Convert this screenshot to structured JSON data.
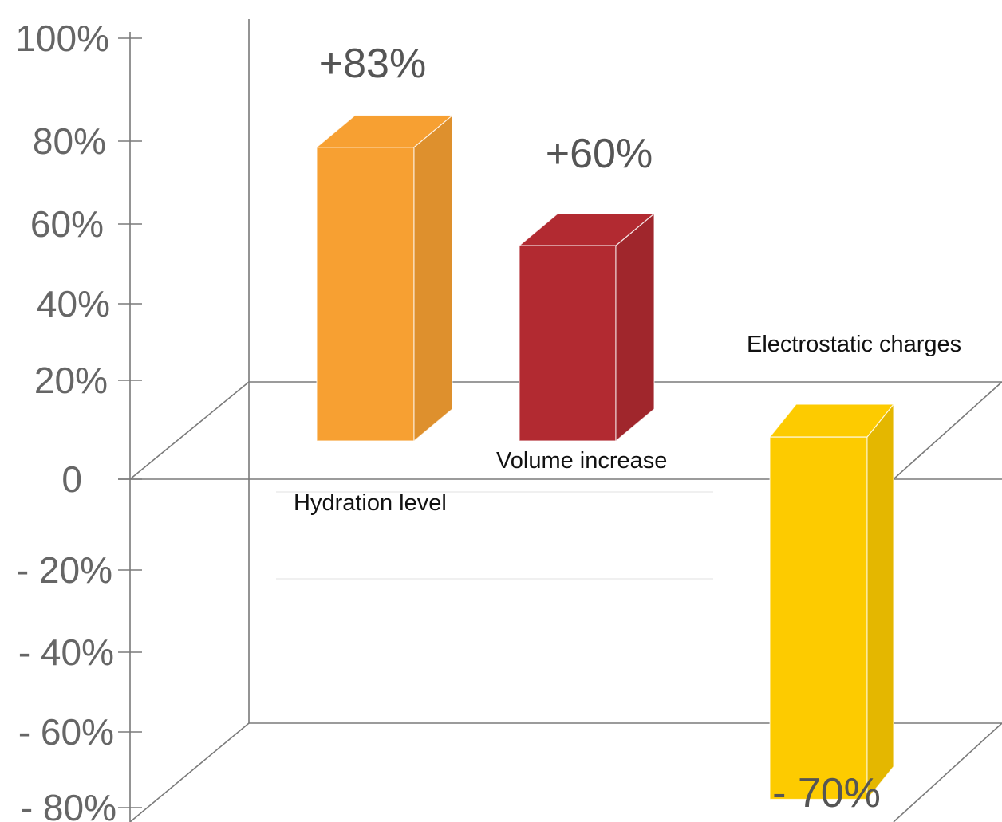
{
  "chart_data": {
    "type": "bar",
    "categories": [
      "Hydration level",
      "Volume increase",
      "Electrostatic charges"
    ],
    "values": [
      83,
      60,
      -70
    ],
    "data_labels": [
      "+83%",
      "+60%",
      "- 70%"
    ],
    "colors": [
      "#F7A032",
      "#B22A31",
      "#FDCB00"
    ],
    "y_ticks": [
      100,
      80,
      60,
      40,
      20,
      0,
      -20,
      -40,
      -60,
      -80
    ],
    "y_tick_labels": [
      "100%",
      "80%",
      "60%",
      "40%",
      "20%",
      "0",
      "- 20%",
      "- 40%",
      "- 60%",
      "- 80%"
    ],
    "ylim": [
      -80,
      100
    ],
    "title": "",
    "xlabel": "",
    "ylabel": "",
    "grid": false,
    "legend": "none",
    "style": "3d"
  }
}
